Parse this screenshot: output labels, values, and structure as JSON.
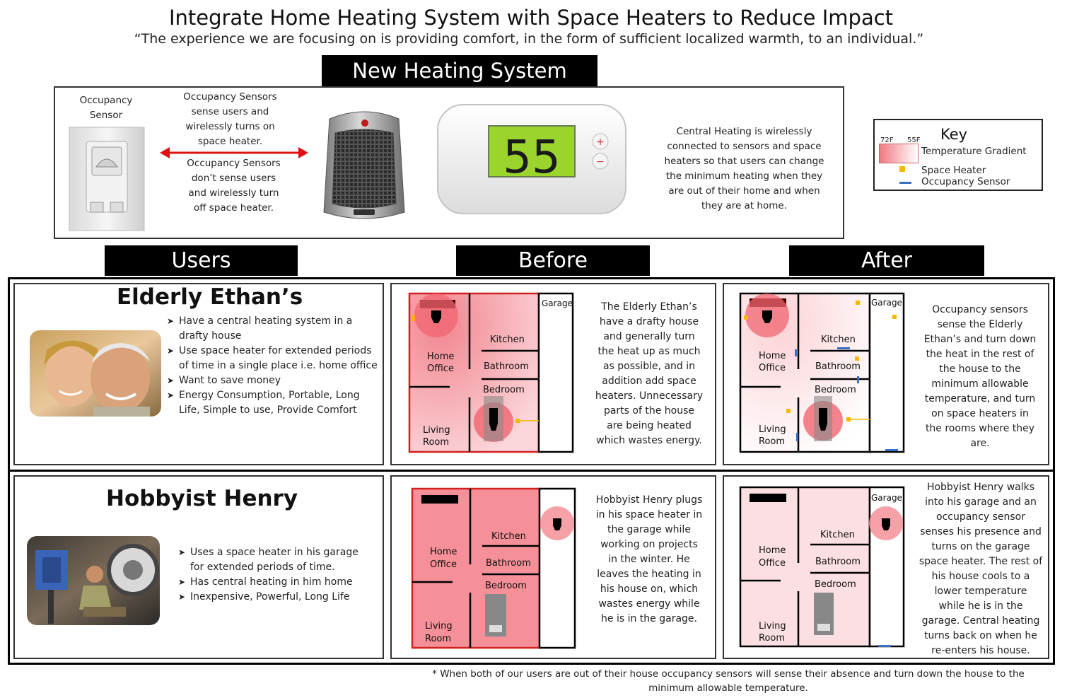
{
  "title": "Integrate Home Heating System with Space Heaters to Reduce Impact",
  "subtitle": "“The experience we are focusing on is providing comfort, in the form of sufficient localized warmth, to an individual.”",
  "system": {
    "label": "New Heating System",
    "sensor_label": [
      "Occupancy",
      "Sensor"
    ],
    "sense_on": [
      "Occupancy Sensors",
      "sense  users and",
      "wirelessly turns on",
      "space heater."
    ],
    "sense_off": [
      "Occupancy Sensors",
      "don’t sense  users",
      "and wirelessly turn",
      "off space heater."
    ],
    "thermostat_display": "55",
    "central": [
      "Central Heating is wirelessly",
      "connected  to sensors and space",
      "heaters  so that users can change",
      "the  minimum heating when they",
      "are out of their home and when",
      "they are at home."
    ]
  },
  "key": {
    "title": "Key",
    "temp_high": "72F",
    "temp_low": "55F",
    "gradient_label": "Temperature Gradient",
    "space_heater": "Space Heater",
    "occupancy_sensor": "Occupancy Sensor",
    "colors": {
      "warm": "#f07a84",
      "heater": "#f5b800",
      "sensor": "#3a6fc4"
    }
  },
  "columns": {
    "users": "Users",
    "before": "Before",
    "after": "After"
  },
  "rooms": {
    "garage": "Garage",
    "kitchen": "Kitchen",
    "home": "Home",
    "office": "Office",
    "bathroom": "Bathroom",
    "bedroom": "Bedroom",
    "living": "Living",
    "room": "Room"
  },
  "ethan": {
    "name": "Elderly Ethan’s",
    "bullets": [
      "Have a central heating system in a drafty house",
      "Use space heater for extended periods of time in a single place i.e. home office",
      "Want to save money",
      "Energy Consumption, Portable, Long Life, Simple to use, Provide Comfort"
    ],
    "before": [
      "The Elderly Ethan’s",
      "have a drafty house",
      "and generally turn",
      "the heat up as much",
      "as possible, and in",
      "addition add space",
      "heaters. Unnecessary",
      "parts of the house",
      "are being heated",
      "which wastes energy."
    ],
    "after": [
      "Occupancy sensors",
      "sense the Elderly",
      "Ethan’s and turn down",
      "the heat in the rest of",
      "the house to the",
      "minimum allowable",
      "temperature, and turn",
      "on space heaters in",
      "the rooms where they",
      "are."
    ]
  },
  "henry": {
    "name": "Hobbyist Henry",
    "bullets": [
      "Uses a space heater in his garage for extended periods of time.",
      "Has central heating in him home",
      "Inexpensive, Powerful, Long Life"
    ],
    "before": [
      "Hobbyist Henry plugs",
      "in his space heater in",
      "the garage  while",
      "working on projects",
      "in the winter. He",
      "leaves the heating in",
      "his house on, which",
      "wastes energy while",
      "he is in the garage."
    ],
    "after": [
      "Hobbyist Henry  walks",
      "into his garage and an",
      "occupancy sensor",
      "senses his presence  and",
      "turns on the garage",
      "space heater. The rest of",
      "his house cools to a",
      "lower temperature",
      "while he is  in the",
      "garage.  Central heating",
      "turns back on when he",
      "re-enters his  house."
    ]
  },
  "footnote": [
    "* When both of our users are out of their house occupancy sensors will sense their absence and turn down the house to the",
    "minimum allowable temperature."
  ]
}
